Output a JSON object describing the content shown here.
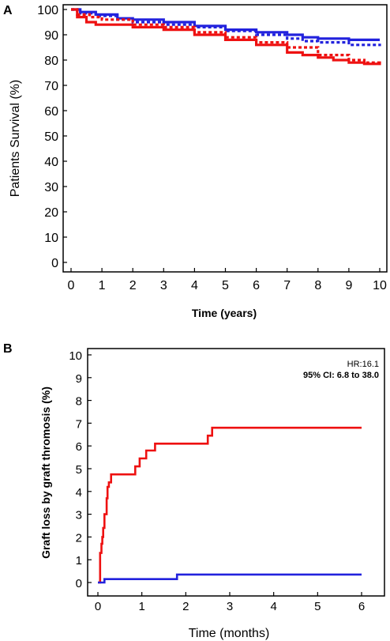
{
  "chart_data": [
    {
      "panel_label": "A",
      "type": "line",
      "title": "",
      "xlabel": "Time (years)",
      "ylabel": "Patients Survival  (%)",
      "xlim": [
        0,
        10
      ],
      "ylim": [
        0,
        100
      ],
      "x_ticks": [
        "0",
        "1",
        "2",
        "3",
        "4",
        "5",
        "6",
        "7",
        "8",
        "9",
        "10"
      ],
      "y_ticks": [
        "0",
        "10",
        "20",
        "30",
        "40",
        "50",
        "60",
        "70",
        "80",
        "90",
        "100"
      ],
      "grid": false,
      "series": [
        {
          "color": "#2222dd",
          "style": "solid",
          "step": true,
          "points": [
            [
              0,
              100
            ],
            [
              0.3,
              99
            ],
            [
              0.8,
              98
            ],
            [
              1.5,
              96.5
            ],
            [
              2,
              96
            ],
            [
              3,
              95
            ],
            [
              4,
              93.5
            ],
            [
              5,
              92
            ],
            [
              6,
              91
            ],
            [
              7,
              90
            ],
            [
              7.5,
              89
            ],
            [
              8,
              88.5
            ],
            [
              9,
              88
            ],
            [
              10,
              88
            ]
          ]
        },
        {
          "color": "#2222dd",
          "style": "dotted",
          "step": true,
          "points": [
            [
              0,
              100
            ],
            [
              0.3,
              98.5
            ],
            [
              0.8,
              97.5
            ],
            [
              1.5,
              96
            ],
            [
              2,
              95
            ],
            [
              3,
              94
            ],
            [
              4,
              93
            ],
            [
              5,
              91.5
            ],
            [
              6,
              90
            ],
            [
              7,
              88.5
            ],
            [
              7.5,
              87.5
            ],
            [
              8,
              87
            ],
            [
              9,
              86
            ],
            [
              10,
              85.5
            ]
          ]
        },
        {
          "color": "#ee1111",
          "style": "solid",
          "step": true,
          "points": [
            [
              0,
              100
            ],
            [
              0.2,
              97
            ],
            [
              0.5,
              95
            ],
            [
              0.8,
              94
            ],
            [
              1.5,
              94
            ],
            [
              2,
              93
            ],
            [
              3,
              92
            ],
            [
              4,
              90
            ],
            [
              5,
              88
            ],
            [
              6,
              86
            ],
            [
              7,
              83
            ],
            [
              7.5,
              82
            ],
            [
              8,
              81
            ],
            [
              8.5,
              80
            ],
            [
              9,
              79
            ],
            [
              9.5,
              78.5
            ],
            [
              10,
              78
            ]
          ]
        },
        {
          "color": "#ee1111",
          "style": "dotted",
          "step": true,
          "points": [
            [
              0,
              100
            ],
            [
              0.2,
              98
            ],
            [
              0.6,
              97
            ],
            [
              1,
              96
            ],
            [
              2,
              94
            ],
            [
              3,
              93
            ],
            [
              4,
              91
            ],
            [
              5,
              89
            ],
            [
              6,
              87
            ],
            [
              7,
              85
            ],
            [
              8,
              82
            ],
            [
              9,
              80
            ],
            [
              9.5,
              79
            ],
            [
              10,
              78.5
            ]
          ]
        }
      ]
    },
    {
      "panel_label": "B",
      "type": "line",
      "title": "",
      "xlabel": "Time (months)",
      "ylabel": "Graft loss by graft thromosis (%)",
      "xlim": [
        0,
        6
      ],
      "ylim": [
        0,
        10
      ],
      "x_ticks": [
        "0",
        "1",
        "2",
        "3",
        "4",
        "5",
        "6"
      ],
      "y_ticks": [
        "0",
        "1",
        "2",
        "3",
        "4",
        "5",
        "6",
        "7",
        "8",
        "9",
        "10"
      ],
      "grid": false,
      "annotations": [
        "HR:16.1",
        "95% CI: 6.8 to 38.0"
      ],
      "series": [
        {
          "color": "#ee1111",
          "style": "solid",
          "step": true,
          "points": [
            [
              0,
              0
            ],
            [
              0.05,
              1.3
            ],
            [
              0.08,
              1.7
            ],
            [
              0.1,
              2.0
            ],
            [
              0.12,
              2.4
            ],
            [
              0.15,
              3.0
            ],
            [
              0.2,
              3.7
            ],
            [
              0.22,
              4.2
            ],
            [
              0.25,
              4.4
            ],
            [
              0.3,
              4.75
            ],
            [
              0.8,
              4.75
            ],
            [
              0.85,
              5.1
            ],
            [
              0.95,
              5.45
            ],
            [
              1.1,
              5.8
            ],
            [
              1.3,
              6.1
            ],
            [
              2.4,
              6.1
            ],
            [
              2.5,
              6.45
            ],
            [
              2.6,
              6.8
            ],
            [
              6,
              6.8
            ]
          ]
        },
        {
          "color": "#2222dd",
          "style": "solid",
          "step": true,
          "points": [
            [
              0,
              0
            ],
            [
              0.15,
              0
            ],
            [
              0.15,
              0.15
            ],
            [
              1.8,
              0.15
            ],
            [
              1.8,
              0.35
            ],
            [
              6,
              0.35
            ]
          ]
        }
      ]
    }
  ]
}
